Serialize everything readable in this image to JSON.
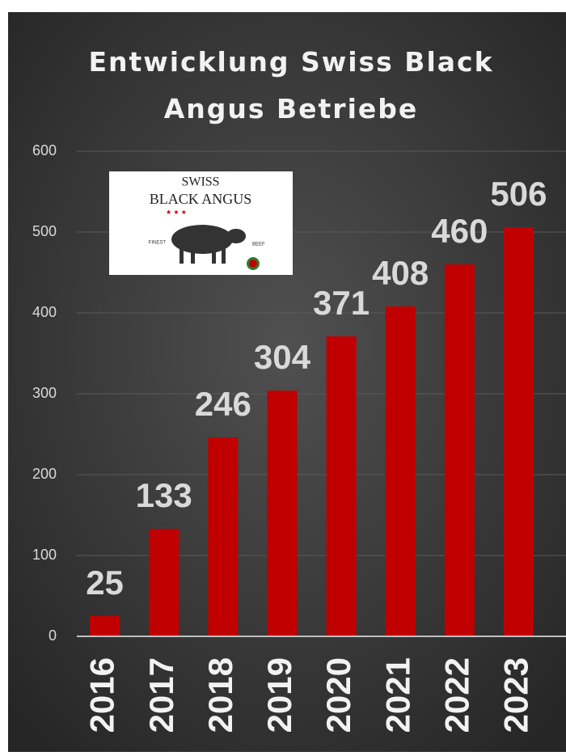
{
  "chart_data": {
    "type": "bar",
    "title": "Entwicklung Swiss Black Angus Betriebe",
    "categories": [
      "2016",
      "2017",
      "2018",
      "2019",
      "2020",
      "2021",
      "2022",
      "2023"
    ],
    "values": [
      25,
      133,
      246,
      304,
      371,
      408,
      460,
      506
    ],
    "color": "#c00000",
    "ylim": [
      0,
      600
    ],
    "yticks": [
      0,
      100,
      200,
      300,
      400,
      500,
      600
    ],
    "grid": true
  },
  "logo": {
    "top": "SWISS",
    "name": "BLACK ANGUS",
    "left": "FINEST",
    "right": "BEEF"
  }
}
